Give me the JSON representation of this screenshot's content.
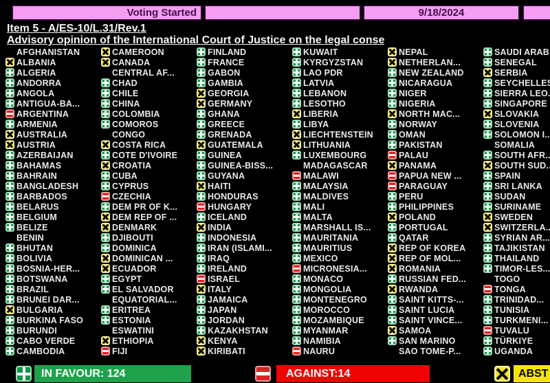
{
  "header": {
    "status": "Voting Started",
    "date": "9/18/2024"
  },
  "title": {
    "item_line": "Item 5 - A/ES-10/L.31/Rev.1",
    "subject_line": "Advisory opinion of the International Court of Justice on the legal conse"
  },
  "vote_legend": {
    "f": "in-favour",
    "a": "against",
    "x": "abstain",
    "": "no-vote"
  },
  "board": {
    "columns": [
      [
        {
          "n": "AFGHANISTAN",
          "v": ""
        },
        {
          "n": "ALBANIA",
          "v": "x"
        },
        {
          "n": "ALGERIA",
          "v": "f"
        },
        {
          "n": "ANDORRA",
          "v": "f"
        },
        {
          "n": "ANGOLA",
          "v": "f"
        },
        {
          "n": "ANTIGUA-BA...",
          "v": "f"
        },
        {
          "n": "ARGENTINA",
          "v": "a"
        },
        {
          "n": "ARMENIA",
          "v": "f"
        },
        {
          "n": "AUSTRALIA",
          "v": "x"
        },
        {
          "n": "AUSTRIA",
          "v": "x"
        },
        {
          "n": "AZERBAIJAN",
          "v": "f"
        },
        {
          "n": "BAHAMAS",
          "v": "f"
        },
        {
          "n": "BAHRAIN",
          "v": "f"
        },
        {
          "n": "BANGLADESH",
          "v": "f"
        },
        {
          "n": "BARBADOS",
          "v": "f"
        },
        {
          "n": "BELARUS",
          "v": "f"
        },
        {
          "n": "BELGIUM",
          "v": "f"
        },
        {
          "n": "BELIZE",
          "v": "f"
        },
        {
          "n": "BENIN",
          "v": ""
        },
        {
          "n": "BHUTAN",
          "v": "f"
        },
        {
          "n": "BOLIVIA",
          "v": "f"
        },
        {
          "n": "BOSNIA-HER...",
          "v": "f"
        },
        {
          "n": "BOTSWANA",
          "v": "f"
        },
        {
          "n": "BRAZIL",
          "v": "f"
        },
        {
          "n": "BRUNEI DAR...",
          "v": "f"
        },
        {
          "n": "BULGARIA",
          "v": "x"
        },
        {
          "n": "BURKINA FASO",
          "v": "f"
        },
        {
          "n": "BURUNDI",
          "v": "f"
        },
        {
          "n": "CABO VERDE",
          "v": "f"
        },
        {
          "n": "CAMBODIA",
          "v": "f"
        }
      ],
      [
        {
          "n": "CAMEROON",
          "v": "x"
        },
        {
          "n": "CANADA",
          "v": "x"
        },
        {
          "n": "CENTRAL AF...",
          "v": ""
        },
        {
          "n": "CHAD",
          "v": "f"
        },
        {
          "n": "CHILE",
          "v": "f"
        },
        {
          "n": "CHINA",
          "v": "f"
        },
        {
          "n": "COLOMBIA",
          "v": "f"
        },
        {
          "n": "COMOROS",
          "v": "f"
        },
        {
          "n": "CONGO",
          "v": ""
        },
        {
          "n": "COSTA RICA",
          "v": "x"
        },
        {
          "n": "COTE D'IVOIRE",
          "v": "f"
        },
        {
          "n": "CROATIA",
          "v": "x"
        },
        {
          "n": "CUBA",
          "v": "f"
        },
        {
          "n": "CYPRUS",
          "v": "f"
        },
        {
          "n": "CZECHIA",
          "v": "a"
        },
        {
          "n": "DEM PR OF K...",
          "v": "f"
        },
        {
          "n": "DEM REP OF ...",
          "v": "x"
        },
        {
          "n": "DENMARK",
          "v": "x"
        },
        {
          "n": "DJIBOUTI",
          "v": "f"
        },
        {
          "n": "DOMINICA",
          "v": "f"
        },
        {
          "n": "DOMINICAN ...",
          "v": "x"
        },
        {
          "n": "ECUADOR",
          "v": "x"
        },
        {
          "n": "EGYPT",
          "v": "f"
        },
        {
          "n": "EL SALVADOR",
          "v": "f"
        },
        {
          "n": "EQUATORIAL...",
          "v": ""
        },
        {
          "n": "ERITREA",
          "v": "f"
        },
        {
          "n": "ESTONIA",
          "v": "f"
        },
        {
          "n": "ESWATINI",
          "v": ""
        },
        {
          "n": "ETHIOPIA",
          "v": "x"
        },
        {
          "n": "FIJI",
          "v": "a"
        }
      ],
      [
        {
          "n": "FINLAND",
          "v": "f"
        },
        {
          "n": "FRANCE",
          "v": "f"
        },
        {
          "n": "GABON",
          "v": "f"
        },
        {
          "n": "GAMBIA",
          "v": "f"
        },
        {
          "n": "GEORGIA",
          "v": "x"
        },
        {
          "n": "GERMANY",
          "v": "x"
        },
        {
          "n": "GHANA",
          "v": "f"
        },
        {
          "n": "GREECE",
          "v": "f"
        },
        {
          "n": "GRENADA",
          "v": "f"
        },
        {
          "n": "GUATEMALA",
          "v": "x"
        },
        {
          "n": "GUINEA",
          "v": "f"
        },
        {
          "n": "GUINEA-BISS...",
          "v": "f"
        },
        {
          "n": "GUYANA",
          "v": "f"
        },
        {
          "n": "HAITI",
          "v": "x"
        },
        {
          "n": "HONDURAS",
          "v": "f"
        },
        {
          "n": "HUNGARY",
          "v": "a"
        },
        {
          "n": "ICELAND",
          "v": "f"
        },
        {
          "n": "INDIA",
          "v": "x"
        },
        {
          "n": "INDONESIA",
          "v": "f"
        },
        {
          "n": "IRAN (ISLAMI...",
          "v": "f"
        },
        {
          "n": "IRAQ",
          "v": "f"
        },
        {
          "n": "IRELAND",
          "v": "f"
        },
        {
          "n": "ISRAEL",
          "v": "a"
        },
        {
          "n": "ITALY",
          "v": "x"
        },
        {
          "n": "JAMAICA",
          "v": "f"
        },
        {
          "n": "JAPAN",
          "v": "f"
        },
        {
          "n": "JORDAN",
          "v": "f"
        },
        {
          "n": "KAZAKHSTAN",
          "v": "f"
        },
        {
          "n": "KENYA",
          "v": "x"
        },
        {
          "n": "KIRIBATI",
          "v": "x"
        }
      ],
      [
        {
          "n": "KUWAIT",
          "v": "f"
        },
        {
          "n": "KYRGYZSTAN",
          "v": "f"
        },
        {
          "n": "LAO PDR",
          "v": "f"
        },
        {
          "n": "LATVIA",
          "v": "f"
        },
        {
          "n": "LEBANON",
          "v": "f"
        },
        {
          "n": "LESOTHO",
          "v": "f"
        },
        {
          "n": "LIBERIA",
          "v": "x"
        },
        {
          "n": "LIBYA",
          "v": "f"
        },
        {
          "n": "LIECHTENSTEIN",
          "v": "x"
        },
        {
          "n": "LITHUANIA",
          "v": "x"
        },
        {
          "n": "LUXEMBOURG",
          "v": "f"
        },
        {
          "n": "MADAGASCAR",
          "v": ""
        },
        {
          "n": "MALAWI",
          "v": "a"
        },
        {
          "n": "MALAYSIA",
          "v": "f"
        },
        {
          "n": "MALDIVES",
          "v": "f"
        },
        {
          "n": "MALI",
          "v": "f"
        },
        {
          "n": "MALTA",
          "v": "f"
        },
        {
          "n": "MARSHALL IS...",
          "v": "f"
        },
        {
          "n": "MAURITANIA",
          "v": "f"
        },
        {
          "n": "MAURITIUS",
          "v": "f"
        },
        {
          "n": "MEXICO",
          "v": "f"
        },
        {
          "n": "MICRONESIA...",
          "v": "a"
        },
        {
          "n": "MONACO",
          "v": "f"
        },
        {
          "n": "MONGOLIA",
          "v": "f"
        },
        {
          "n": "MONTENEGRO",
          "v": "f"
        },
        {
          "n": "MOROCCO",
          "v": "f"
        },
        {
          "n": "MOZAMBIQUE",
          "v": "f"
        },
        {
          "n": "MYANMAR",
          "v": "f"
        },
        {
          "n": "NAMIBIA",
          "v": "f"
        },
        {
          "n": "NAURU",
          "v": "a"
        }
      ],
      [
        {
          "n": "NEPAL",
          "v": "x"
        },
        {
          "n": "NETHERLAN...",
          "v": "x"
        },
        {
          "n": "NEW ZEALAND",
          "v": "f"
        },
        {
          "n": "NICARAGUA",
          "v": "f"
        },
        {
          "n": "NIGER",
          "v": "f"
        },
        {
          "n": "NIGERIA",
          "v": "f"
        },
        {
          "n": "NORTH MAC...",
          "v": "x"
        },
        {
          "n": "NORWAY",
          "v": "f"
        },
        {
          "n": "OMAN",
          "v": "f"
        },
        {
          "n": "PAKISTAN",
          "v": "f"
        },
        {
          "n": "PALAU",
          "v": "a"
        },
        {
          "n": "PANAMA",
          "v": "x"
        },
        {
          "n": "PAPUA NEW ...",
          "v": "a"
        },
        {
          "n": "PARAGUAY",
          "v": "a"
        },
        {
          "n": "PERU",
          "v": "f"
        },
        {
          "n": "PHILIPPINES",
          "v": "f"
        },
        {
          "n": "POLAND",
          "v": "x"
        },
        {
          "n": "PORTUGAL",
          "v": "f"
        },
        {
          "n": "QATAR",
          "v": "f"
        },
        {
          "n": "REP OF KOREA",
          "v": "x"
        },
        {
          "n": "REP OF MOL...",
          "v": "x"
        },
        {
          "n": "ROMANIA",
          "v": "x"
        },
        {
          "n": "RUSSIAN FED...",
          "v": "f"
        },
        {
          "n": "RWANDA",
          "v": "x"
        },
        {
          "n": "SAINT KITTS-...",
          "v": "f"
        },
        {
          "n": "SAINT LUCIA",
          "v": "f"
        },
        {
          "n": "SAINT VINCE...",
          "v": "f"
        },
        {
          "n": "SAMOA",
          "v": "x"
        },
        {
          "n": "SAN MARINO",
          "v": "f"
        },
        {
          "n": "SAO TOME-P...",
          "v": ""
        }
      ],
      [
        {
          "n": "SAUDI ARAB...",
          "v": "f"
        },
        {
          "n": "SENEGAL",
          "v": "f"
        },
        {
          "n": "SERBIA",
          "v": "x"
        },
        {
          "n": "SEYCHELLES",
          "v": "f"
        },
        {
          "n": "SIERRA LEO...",
          "v": "f"
        },
        {
          "n": "SINGAPORE",
          "v": "f"
        },
        {
          "n": "SLOVAKIA",
          "v": "x"
        },
        {
          "n": "SLOVENIA",
          "v": "f"
        },
        {
          "n": "SOLOMON I...",
          "v": "f"
        },
        {
          "n": "SOMALIA",
          "v": ""
        },
        {
          "n": "SOUTH AFR...",
          "v": "f"
        },
        {
          "n": "SOUTH SUD...",
          "v": "x"
        },
        {
          "n": "SPAIN",
          "v": "f"
        },
        {
          "n": "SRI LANKA",
          "v": "f"
        },
        {
          "n": "SUDAN",
          "v": "f"
        },
        {
          "n": "SURINAME",
          "v": "f"
        },
        {
          "n": "SWEDEN",
          "v": "x"
        },
        {
          "n": "SWITZERLA...",
          "v": "x"
        },
        {
          "n": "SYRIAN AR...",
          "v": "f"
        },
        {
          "n": "TAJIKISTAN",
          "v": "f"
        },
        {
          "n": "THAILAND",
          "v": "f"
        },
        {
          "n": "TIMOR-LES...",
          "v": "f"
        },
        {
          "n": "TOGO",
          "v": ""
        },
        {
          "n": "TONGA",
          "v": "a"
        },
        {
          "n": "TRINIDAD...",
          "v": "f"
        },
        {
          "n": "TUNISIA",
          "v": "f"
        },
        {
          "n": "TURKMENI...",
          "v": "f"
        },
        {
          "n": "TUVALU",
          "v": "a"
        },
        {
          "n": "TÜRKIYE",
          "v": "f"
        },
        {
          "n": "UGANDA",
          "v": "f"
        }
      ]
    ]
  },
  "footer": {
    "in_favour_label": "IN FAVOUR: 124",
    "in_favour_count": 124,
    "against_label": "AGAINST:14",
    "against_count": 14,
    "abstain_label": "ABST"
  },
  "colors": {
    "in_favour_green": "#0f9549",
    "against_red": "#dd2222",
    "abstain_yellow": "#f3e32d",
    "favour_bar": "#1fa24b",
    "against_bar": "#ee0202",
    "abstain_bar": "#f6e500",
    "header_pink": "#f49df1",
    "background": "#000000"
  }
}
